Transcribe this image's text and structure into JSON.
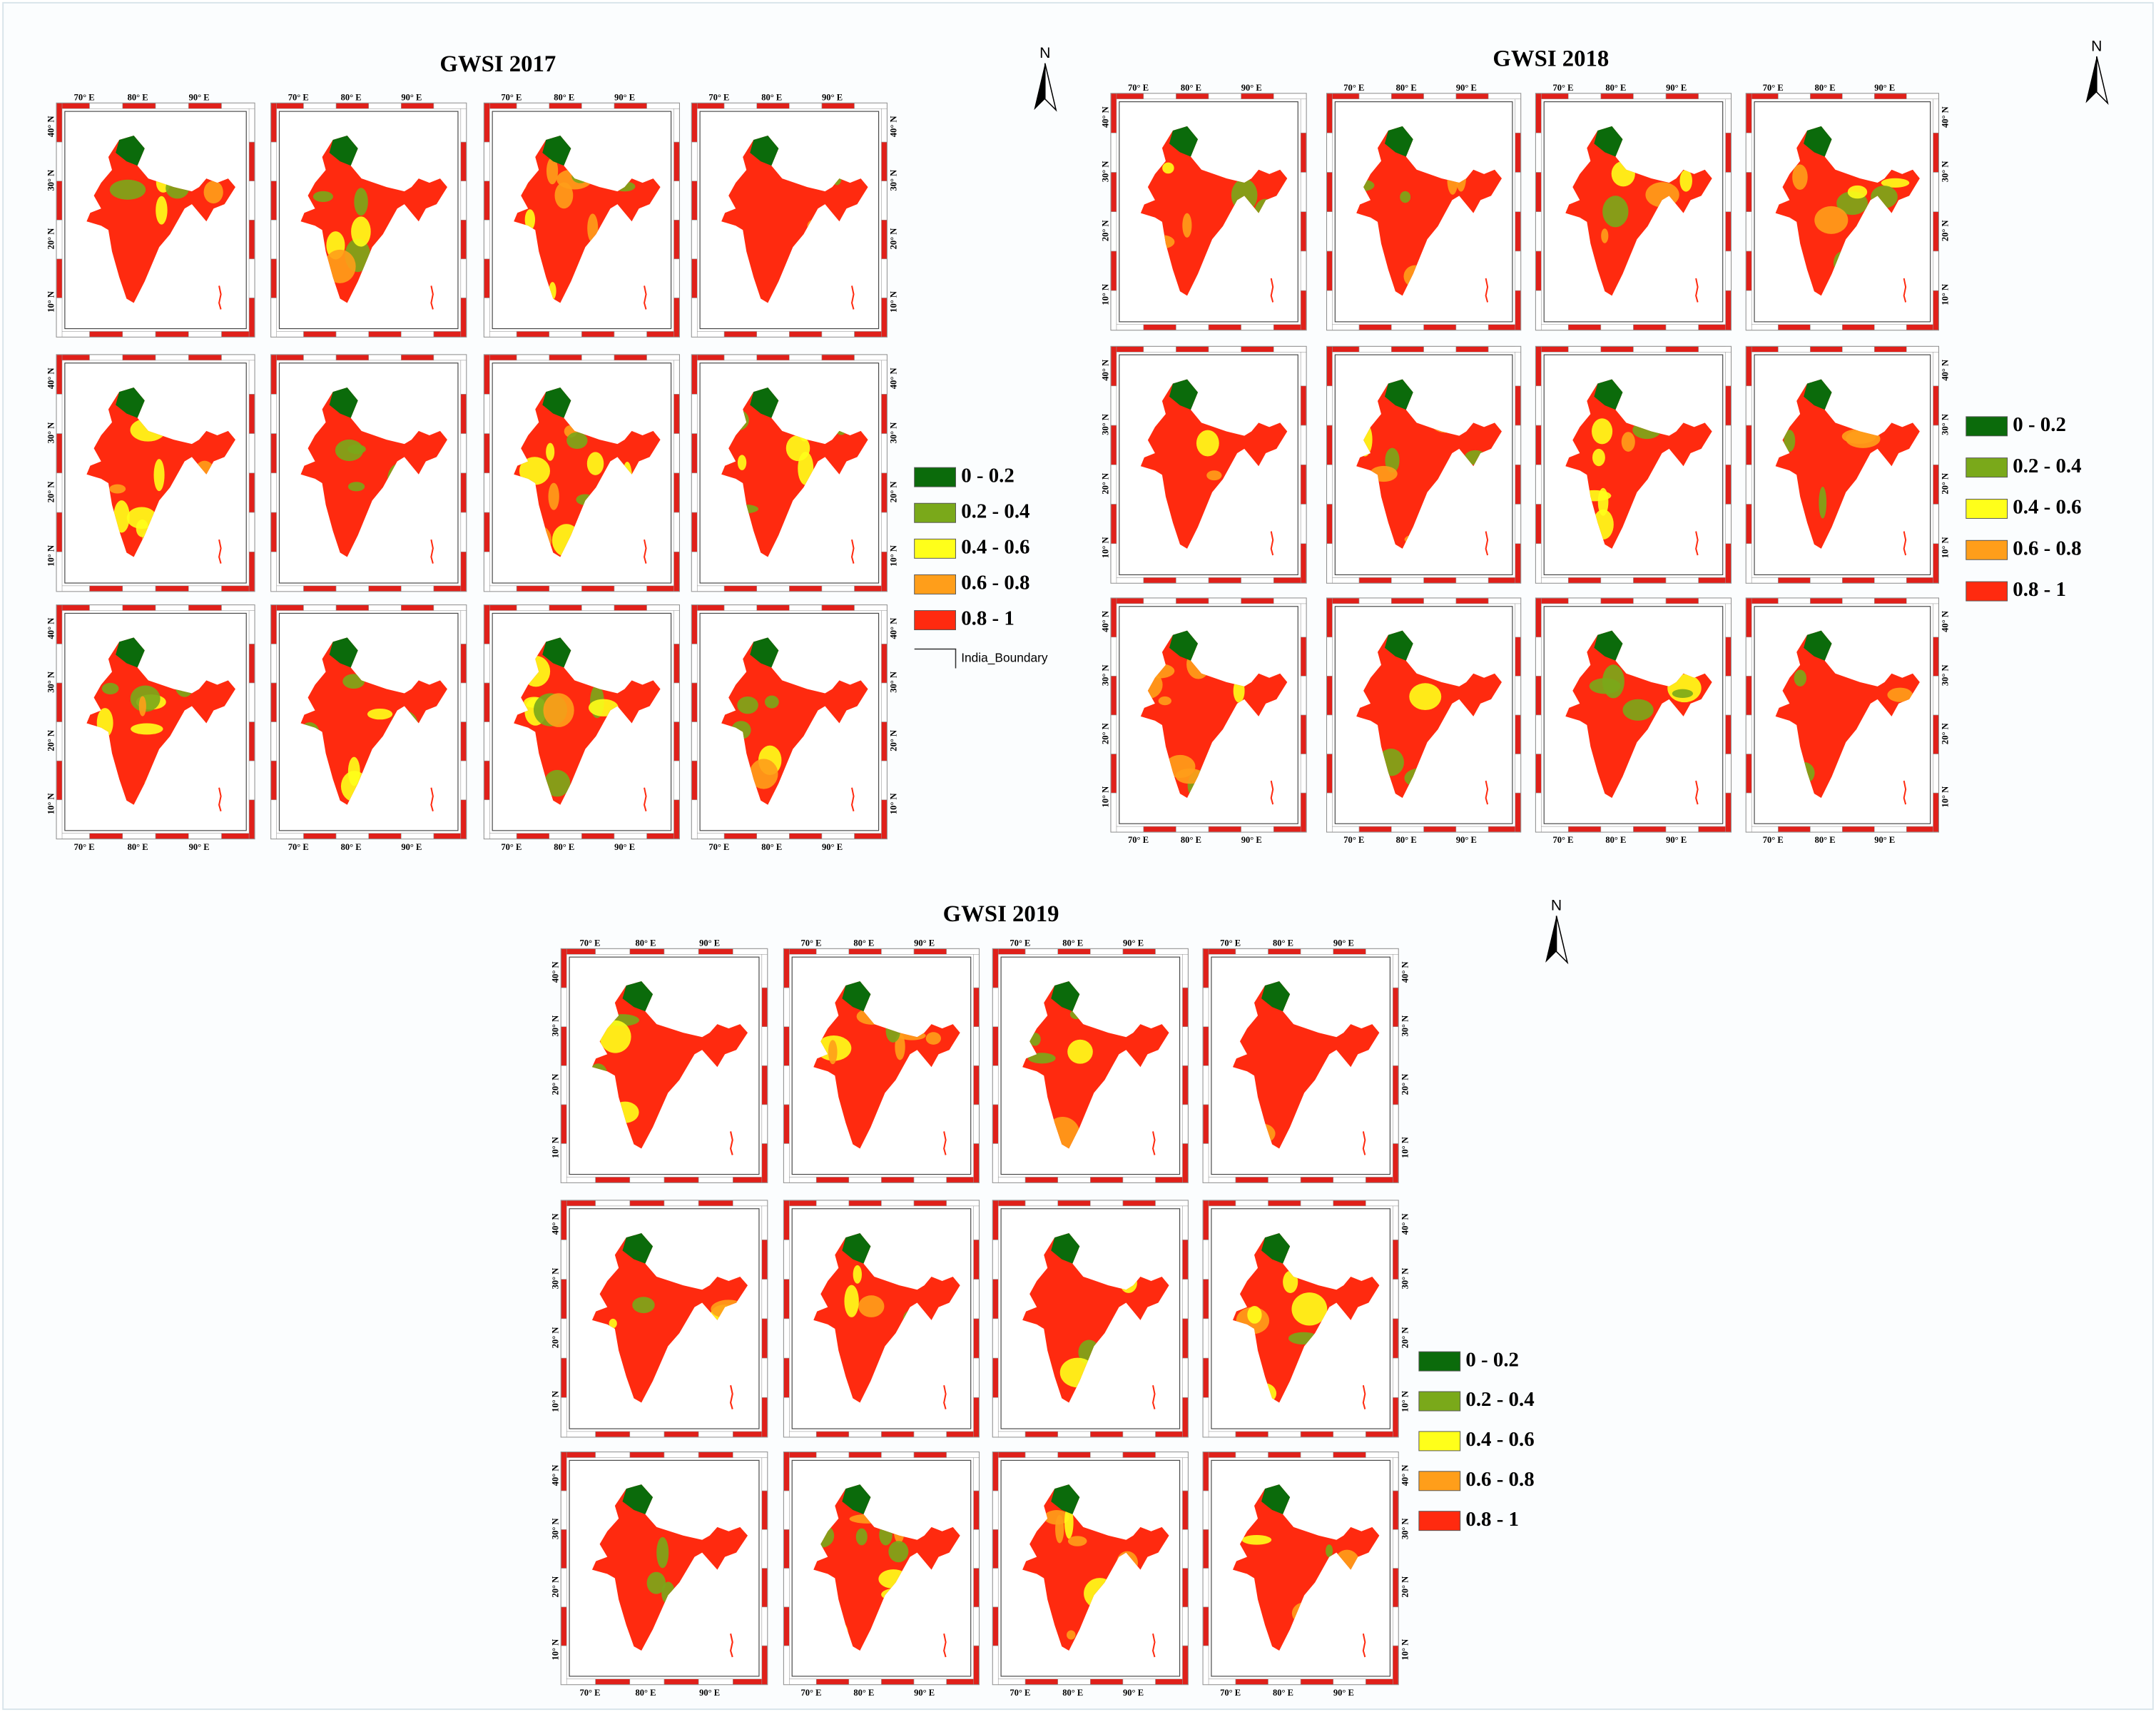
{
  "maps": [
    {
      "title": "GWSI 2017",
      "legend": [
        {
          "label": "0 - 0.2",
          "color": "#0b6b0b"
        },
        {
          "label": "0.2 - 0.4",
          "color": "#7aa91a"
        },
        {
          "label": "0.4 - 0.6",
          "color": "#ffff1a"
        },
        {
          "label": "0.6 - 0.8",
          "color": "#ff9e1a"
        },
        {
          "label": "0.8 - 1",
          "color": "#ff2a0f"
        }
      ],
      "boundary_label": "India_Boundary"
    },
    {
      "title": "GWSI 2018",
      "legend": [
        {
          "label": "0 - 0.2",
          "color": "#0b6b0b"
        },
        {
          "label": "0.2 - 0.4",
          "color": "#7aa91a"
        },
        {
          "label": "0.4 - 0.6",
          "color": "#ffff1a"
        },
        {
          "label": "0.6 - 0.8",
          "color": "#ff9e1a"
        },
        {
          "label": "0.8 - 1",
          "color": "#ff2a0f"
        }
      ]
    },
    {
      "title": "GWSI 2019",
      "legend": [
        {
          "label": "0 - 0.2",
          "color": "#0b6b0b"
        },
        {
          "label": "0.2 - 0.4",
          "color": "#7aa91a"
        },
        {
          "label": "0.4 - 0.6",
          "color": "#ffff1a"
        },
        {
          "label": "0.6 - 0.8",
          "color": "#ff9e1a"
        },
        {
          "label": "0.8 - 1",
          "color": "#ff2a0f"
        }
      ]
    }
  ],
  "north_label": "N",
  "lon_labels": [
    "70° E",
    "80° E",
    "90° E"
  ],
  "lat_labels": [
    "10° N",
    "20° N",
    "30° N",
    "40° N"
  ]
}
